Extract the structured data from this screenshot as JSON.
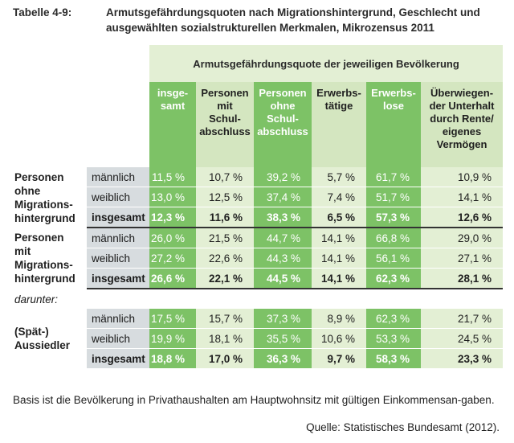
{
  "title": {
    "label": "Tabelle 4-9:",
    "text": "Armutsgefährdungsquoten nach Migrationshintergrund, Geschlecht und ausgewählten sozialstrukturellen Merkmalen, Mikrozensus 2011"
  },
  "table": {
    "super_header": "Armutsgefährdungsquote der jeweiligen Bevölkerung",
    "columns": [
      {
        "label": "insge-\nsamt"
      },
      {
        "label": "Personen\nmit\nSchul-\nabschluss"
      },
      {
        "label": "Personen\nohne\nSchul-\nabschluss"
      },
      {
        "label": "Erwerbs-\ntätige"
      },
      {
        "label": "Erwerbs-\nlose"
      },
      {
        "label": "Überwiegen-\nder Unterhalt\ndurch Rente/\neigenes\nVermögen"
      }
    ],
    "groups": [
      {
        "label": "Personen\nohne\nMigrations-\nhintergrund",
        "rows": [
          {
            "sub": "männlich",
            "values": [
              "11,5 %",
              "10,7 %",
              "39,2 %",
              "5,7 %",
              "61,7 %",
              "10,9 %"
            ]
          },
          {
            "sub": "weiblich",
            "values": [
              "13,0 %",
              "12,5 %",
              "37,4 %",
              "7,4 %",
              "51,7 %",
              "14,1 %"
            ]
          },
          {
            "sub": "insgesamt",
            "values": [
              "12,3 %",
              "11,6 %",
              "38,3 %",
              "6,5 %",
              "57,3 %",
              "12,6 %"
            ]
          }
        ]
      },
      {
        "label": "Personen\nmit\nMigrations-\nhintergrund",
        "rows": [
          {
            "sub": "männlich",
            "values": [
              "26,0 %",
              "21,5 %",
              "44,7 %",
              "14,1 %",
              "66,8 %",
              "29,0 %"
            ]
          },
          {
            "sub": "weiblich",
            "values": [
              "27,2 %",
              "22,6 %",
              "44,3 %",
              "14,1 %",
              "56,1 %",
              "27,1 %"
            ]
          },
          {
            "sub": "insgesamt",
            "values": [
              "26,6 %",
              "22,1 %",
              "44,5 %",
              "14,1 %",
              "62,3 %",
              "28,1 %"
            ]
          }
        ]
      },
      {
        "label": "(Spät-)\nAussiedler",
        "rows": [
          {
            "sub": "männlich",
            "values": [
              "17,5 %",
              "15,7 %",
              "37,3 %",
              "8,9 %",
              "62,3 %",
              "21,7 %"
            ]
          },
          {
            "sub": "weiblich",
            "values": [
              "19,9 %",
              "18,1 %",
              "35,5 %",
              "10,6 %",
              "53,3 %",
              "24,5 %"
            ]
          },
          {
            "sub": "insgesamt",
            "values": [
              "18,8 %",
              "17,0 %",
              "36,3 %",
              "9,7 %",
              "58,3 %",
              "23,3 %"
            ]
          }
        ]
      }
    ],
    "darunter": "darunter:"
  },
  "footnote": "Basis ist die Bevölkerung in Privathaushalten am Hauptwohnsitz mit gültigen Einkommensan-gaben.",
  "source": "Quelle: Statistisches Bundesamt (2012).",
  "colors": {
    "dark_green": "#7dc266",
    "light_green": "#e3efd4",
    "header_light": "#d4e6c0",
    "sub_grey": "#d7dcdf"
  }
}
